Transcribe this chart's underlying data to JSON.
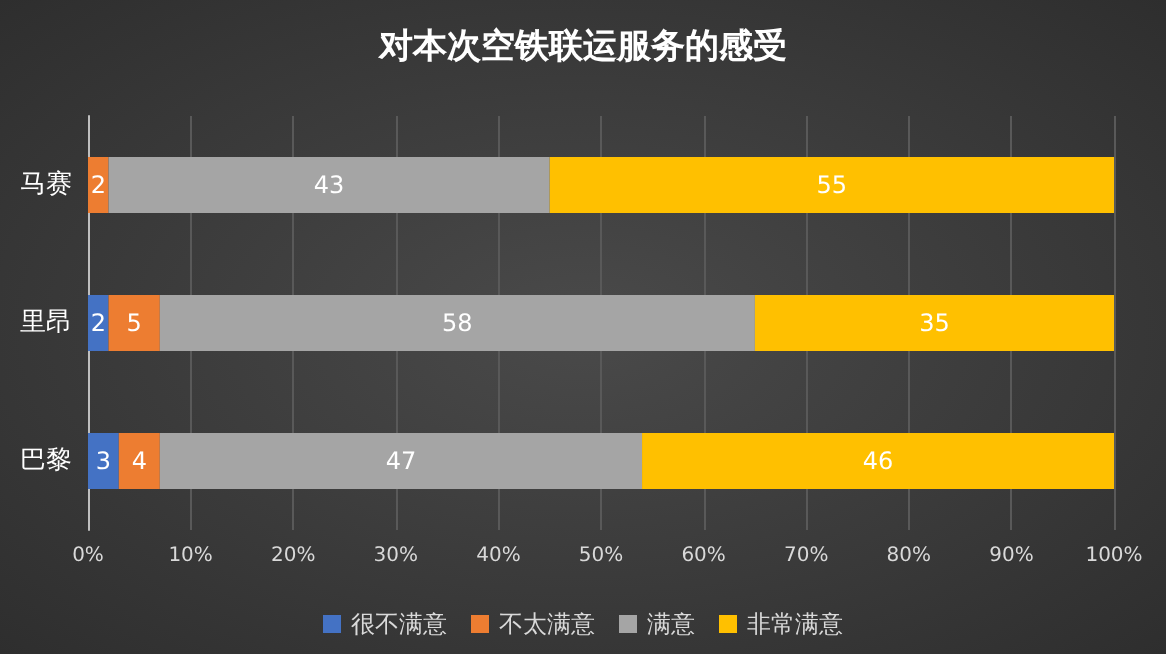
{
  "chart_data": {
    "type": "bar",
    "orientation": "horizontal",
    "stacked": true,
    "title": "对本次空铁联运服务的感受",
    "categories": [
      "马赛",
      "里昂",
      "巴黎"
    ],
    "series": [
      {
        "name": "很不满意",
        "color": "#4472c4",
        "values": [
          null,
          2,
          3
        ]
      },
      {
        "name": "不太满意",
        "color": "#ed7d31",
        "values": [
          2,
          5,
          4
        ]
      },
      {
        "name": "满意",
        "color": "#a5a5a5",
        "values": [
          43,
          58,
          47
        ]
      },
      {
        "name": "非常满意",
        "color": "#ffc000",
        "values": [
          55,
          35,
          46
        ]
      }
    ],
    "xlim": [
      0,
      100
    ],
    "xticks": [
      {
        "value": 0,
        "label": "0%"
      },
      {
        "value": 10,
        "label": "10%"
      },
      {
        "value": 20,
        "label": "20%"
      },
      {
        "value": 30,
        "label": "30%"
      },
      {
        "value": 40,
        "label": "40%"
      },
      {
        "value": 50,
        "label": "50%"
      },
      {
        "value": 60,
        "label": "60%"
      },
      {
        "value": 70,
        "label": "70%"
      },
      {
        "value": 80,
        "label": "80%"
      },
      {
        "value": 90,
        "label": "90%"
      },
      {
        "value": 100,
        "label": "100%"
      }
    ],
    "data_labels": true,
    "grid": "x",
    "legend": "bottom"
  }
}
